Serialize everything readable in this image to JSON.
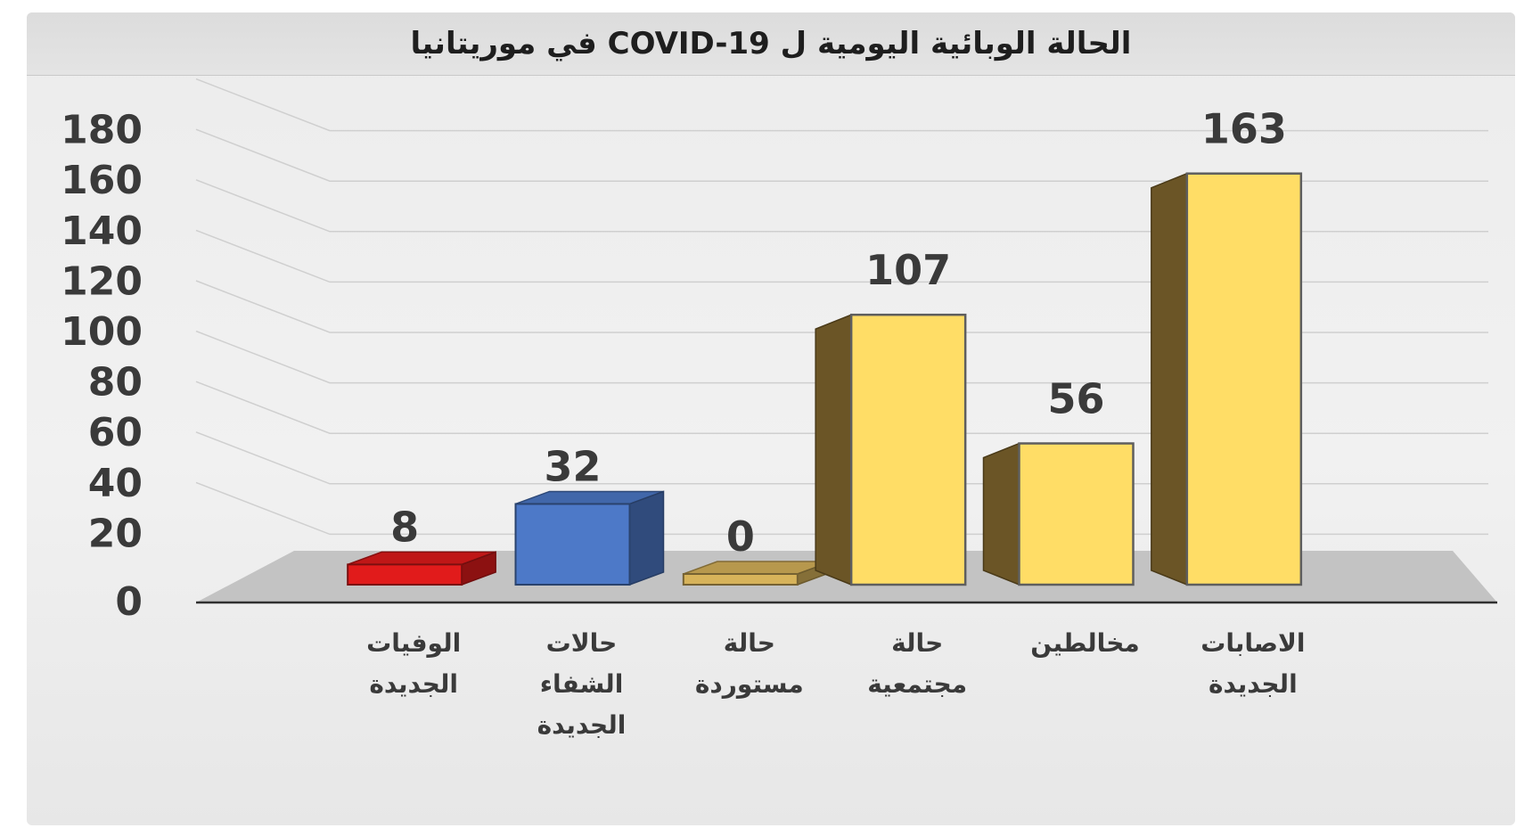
{
  "title": "الحالة الوبائية اليومية  ل   COVID-19 في موريتانيا",
  "chart_data": {
    "type": "bar",
    "title": "الحالة الوبائية اليومية  ل   COVID-19 في موريتانيا",
    "categories": [
      [
        "الوفيات",
        "الجديدة"
      ],
      [
        "حالات",
        "الشفاء",
        "الجديدة"
      ],
      [
        "حالة",
        "مستوردة"
      ],
      [
        "حالة",
        "مجتمعية"
      ],
      [
        "مخالطين"
      ],
      [
        "الاصابات",
        "الجديدة"
      ]
    ],
    "values": [
      8,
      32,
      0,
      107,
      56,
      163
    ],
    "data_labels": [
      "8",
      "32",
      "0",
      "107",
      "56",
      "163"
    ],
    "bar_colors": [
      "#e11b1b",
      "#4d79c8",
      "#d7b35a",
      "#ffdd66",
      "#ffdd66",
      "#ffdd66"
    ],
    "ylim": [
      0,
      180
    ],
    "yticks": [
      "0",
      "20",
      "40",
      "60",
      "80",
      "100",
      "120",
      "140",
      "160",
      "180"
    ],
    "xlabel": "",
    "ylabel": "",
    "grid": true,
    "style": "3d-columns"
  }
}
